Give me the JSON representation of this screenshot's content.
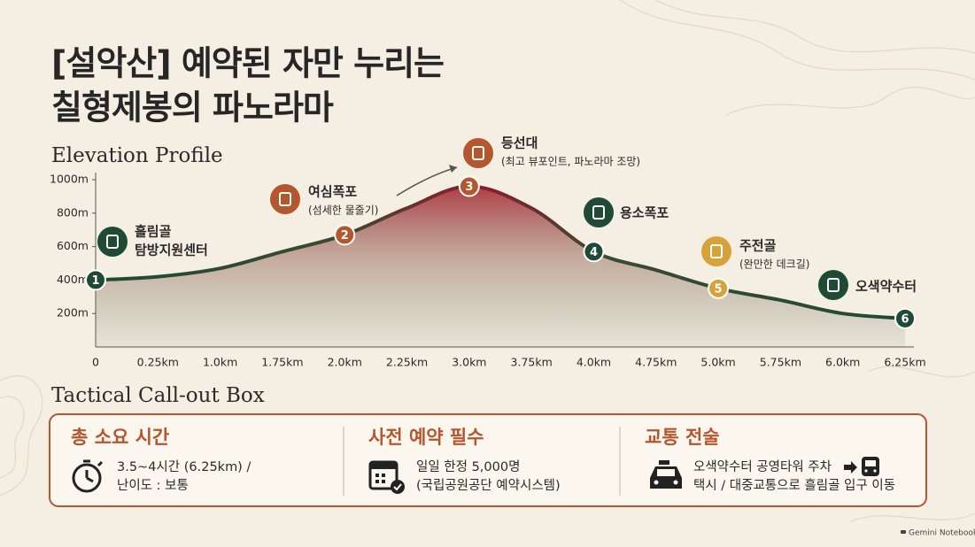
{
  "header": {
    "title_lines": [
      "[설악산] 예약된 자만 누리는",
      "칠형제봉의 파노라마"
    ]
  },
  "chart_data": {
    "type": "area",
    "title": "Elevation Profile",
    "categories": [
      "0",
      "0.25km",
      "1.0km",
      "1.75km",
      "2.0km",
      "2.25km",
      "3.0km",
      "3.75km",
      "4.0km",
      "4.75km",
      "5.0km",
      "5.75km",
      "6.0km",
      "6.25km"
    ],
    "values": [
      400,
      420,
      470,
      570,
      670,
      830,
      960,
      830,
      570,
      460,
      350,
      280,
      200,
      170
    ],
    "ylim": [
      0,
      1000
    ],
    "yticks": [
      {
        "value": 200,
        "label": "200m"
      },
      {
        "value": 400,
        "label": "400m"
      },
      {
        "value": 600,
        "label": "600m"
      },
      {
        "value": 800,
        "label": "800m"
      },
      {
        "value": 1000,
        "label": "1000m"
      }
    ],
    "waypoints": [
      {
        "number": 1,
        "at": "0",
        "color": "#1f4a36",
        "name": [
          "흘림골",
          "탐방지원센터"
        ]
      },
      {
        "number": 2,
        "at": "2.0km",
        "color": "#b4562e",
        "name": [
          "여심폭포"
        ],
        "note": "(섬세한 물줄기)"
      },
      {
        "number": 3,
        "at": "3.0km",
        "color": "#b4562e",
        "name": [
          "등선대"
        ],
        "note": "(최고 뷰포인트, 파노라마 조망)"
      },
      {
        "number": 4,
        "at": "4.0km",
        "color": "#1f4a36",
        "name": [
          "용소폭포"
        ]
      },
      {
        "number": 5,
        "at": "5.0km",
        "color": "#d6a23a",
        "name": [
          "주전골"
        ],
        "note": "(완만한 데크길)"
      },
      {
        "number": 6,
        "at": "6.25km",
        "color": "#1f4a36",
        "name": [
          "오색약수터"
        ]
      }
    ]
  },
  "callout": {
    "heading": "Tactical Call-out Box",
    "sections": [
      {
        "title": "총 소요 시간",
        "lines": [
          "3.5~4시간 (6.25km) /",
          "난이도 : 보통"
        ]
      },
      {
        "title": "사전 예약 필수",
        "lines": [
          "일일 한정 5,000명",
          "(국립공원공단 예약시스템)"
        ]
      },
      {
        "title": "교통 전술",
        "lines": [
          "오색약수터 공영타워 주차",
          "택시 / 대중교통으로 흘림골 입구 이동"
        ]
      }
    ]
  },
  "footer": "Gemini Notebook"
}
